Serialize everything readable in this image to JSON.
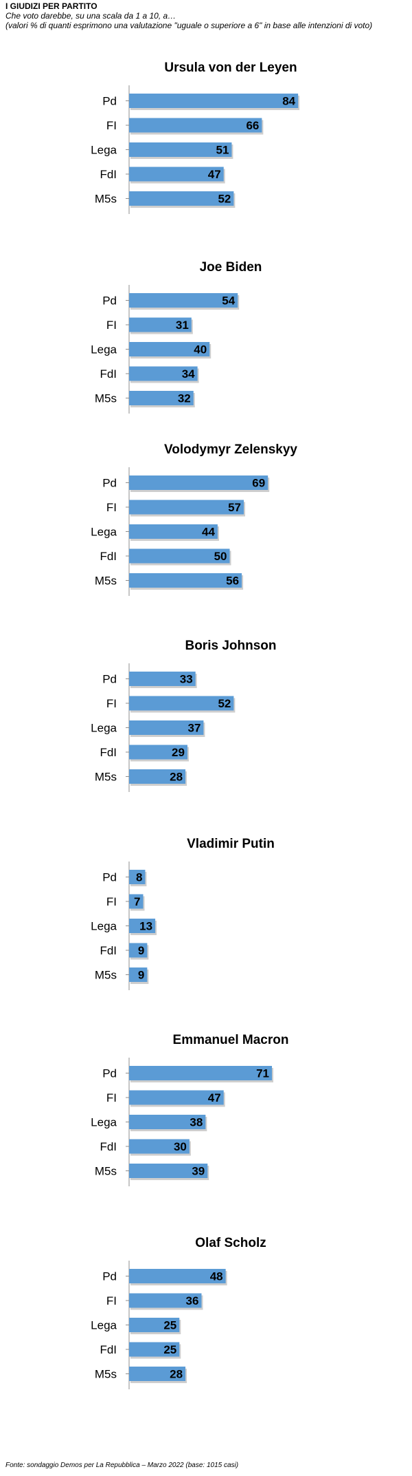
{
  "header": {
    "title": "I GIUDIZI PER PARTITO",
    "subtitle": "Che voto darebbe, su una scala da 1 a 10, a…",
    "note": "(valori % di quanti esprimono una valutazione \"uguale o superiore a 6\" in base alle intenzioni di voto)"
  },
  "colors": {
    "bar": "#5b9bd5",
    "bar_shadow": "#a6a6a6",
    "axis": "#8c8c8c"
  },
  "chart_data": [
    {
      "type": "bar",
      "orientation": "horizontal",
      "title": "Ursula von der Leyen",
      "categories": [
        "Pd",
        "FI",
        "Lega",
        "FdI",
        "M5s"
      ],
      "values": [
        84,
        66,
        51,
        47,
        52
      ],
      "xlim": [
        0,
        100
      ]
    },
    {
      "type": "bar",
      "orientation": "horizontal",
      "title": "Joe Biden",
      "categories": [
        "Pd",
        "FI",
        "Lega",
        "FdI",
        "M5s"
      ],
      "values": [
        54,
        31,
        40,
        34,
        32
      ],
      "xlim": [
        0,
        100
      ]
    },
    {
      "type": "bar",
      "orientation": "horizontal",
      "title": "Volodymyr Zelenskyy",
      "categories": [
        "Pd",
        "FI",
        "Lega",
        "FdI",
        "M5s"
      ],
      "values": [
        69,
        57,
        44,
        50,
        56
      ],
      "xlim": [
        0,
        100
      ]
    },
    {
      "type": "bar",
      "orientation": "horizontal",
      "title": "Boris Johnson",
      "categories": [
        "Pd",
        "FI",
        "Lega",
        "FdI",
        "M5s"
      ],
      "values": [
        33,
        52,
        37,
        29,
        28
      ],
      "xlim": [
        0,
        100
      ]
    },
    {
      "type": "bar",
      "orientation": "horizontal",
      "title": "Vladimir Putin",
      "categories": [
        "Pd",
        "FI",
        "Lega",
        "FdI",
        "M5s"
      ],
      "values": [
        8,
        7,
        13,
        9,
        9
      ],
      "xlim": [
        0,
        100
      ]
    },
    {
      "type": "bar",
      "orientation": "horizontal",
      "title": "Emmanuel Macron",
      "categories": [
        "Pd",
        "FI",
        "Lega",
        "FdI",
        "M5s"
      ],
      "values": [
        71,
        47,
        38,
        30,
        39
      ],
      "xlim": [
        0,
        100
      ]
    },
    {
      "type": "bar",
      "orientation": "horizontal",
      "title": "Olaf Scholz",
      "categories": [
        "Pd",
        "FI",
        "Lega",
        "FdI",
        "M5s"
      ],
      "values": [
        48,
        36,
        25,
        25,
        28
      ],
      "xlim": [
        0,
        100
      ]
    }
  ],
  "footer": {
    "source": "Fonte: sondaggio Demos per La Repubblica – Marzo 2022 (base: 1015 casi)"
  }
}
